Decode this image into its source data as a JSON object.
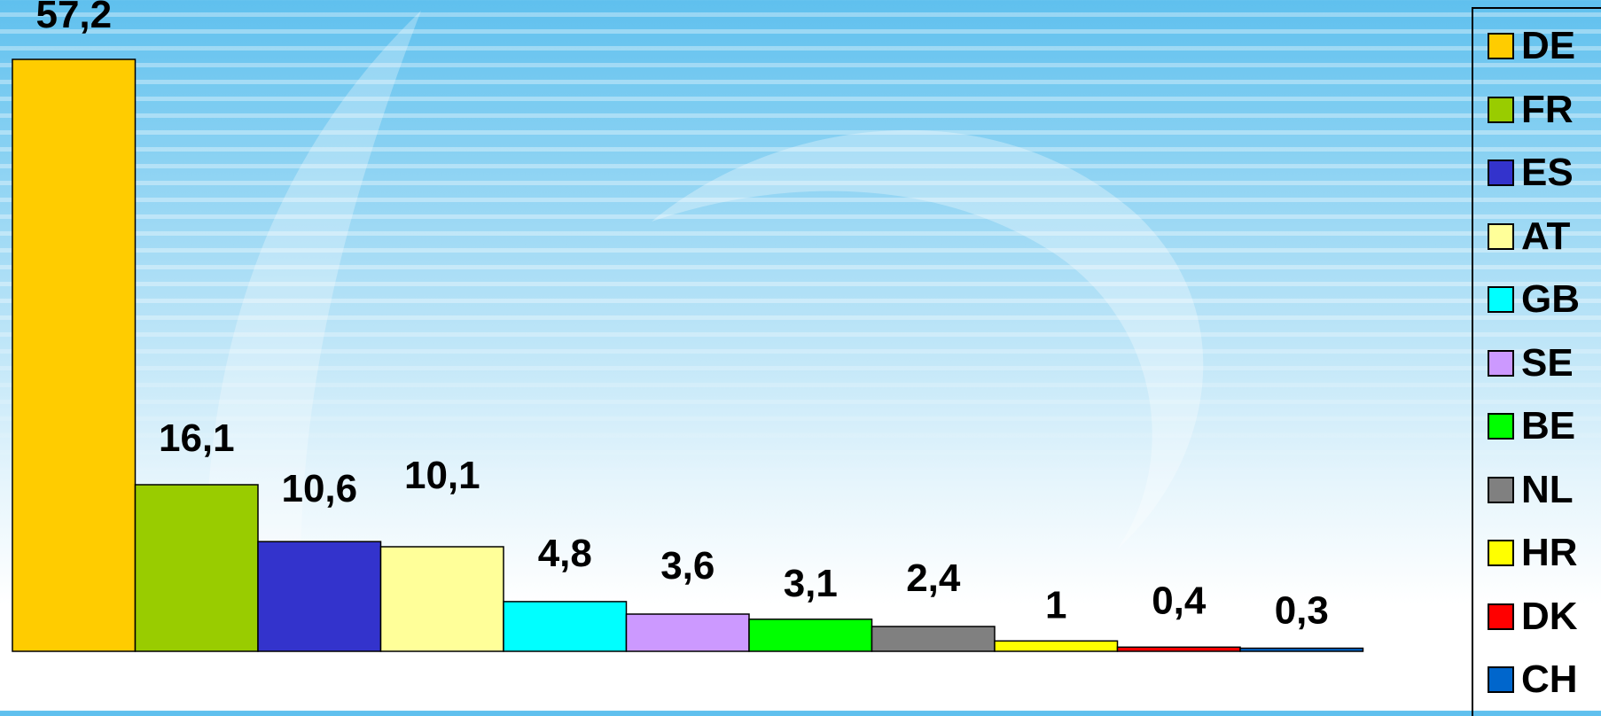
{
  "chart_data": {
    "type": "bar",
    "categories": [
      "DE",
      "FR",
      "ES",
      "AT",
      "GB",
      "SE",
      "BE",
      "NL",
      "HR",
      "DK",
      "CH"
    ],
    "values": [
      57.2,
      16.1,
      10.6,
      10.1,
      4.8,
      3.6,
      3.1,
      2.4,
      1,
      0.4,
      0.3
    ],
    "value_labels": [
      "57,2",
      "16,1",
      "10,6",
      "10,1",
      "4,8",
      "3,6",
      "3,1",
      "2,4",
      "1",
      "0,4",
      "0,3"
    ],
    "colors": [
      "#ffcc00",
      "#99cc00",
      "#3333cc",
      "#ffff99",
      "#00ffff",
      "#cc99ff",
      "#00ff00",
      "#808080",
      "#ffff00",
      "#ff0000",
      "#0066cc"
    ],
    "title": "",
    "xlabel": "",
    "ylabel": "",
    "legend": {
      "placement": "right",
      "entries": [
        "DE",
        "FR",
        "ES",
        "AT",
        "GB",
        "SE",
        "BE",
        "NL",
        "HR",
        "DK",
        "CH"
      ]
    }
  }
}
